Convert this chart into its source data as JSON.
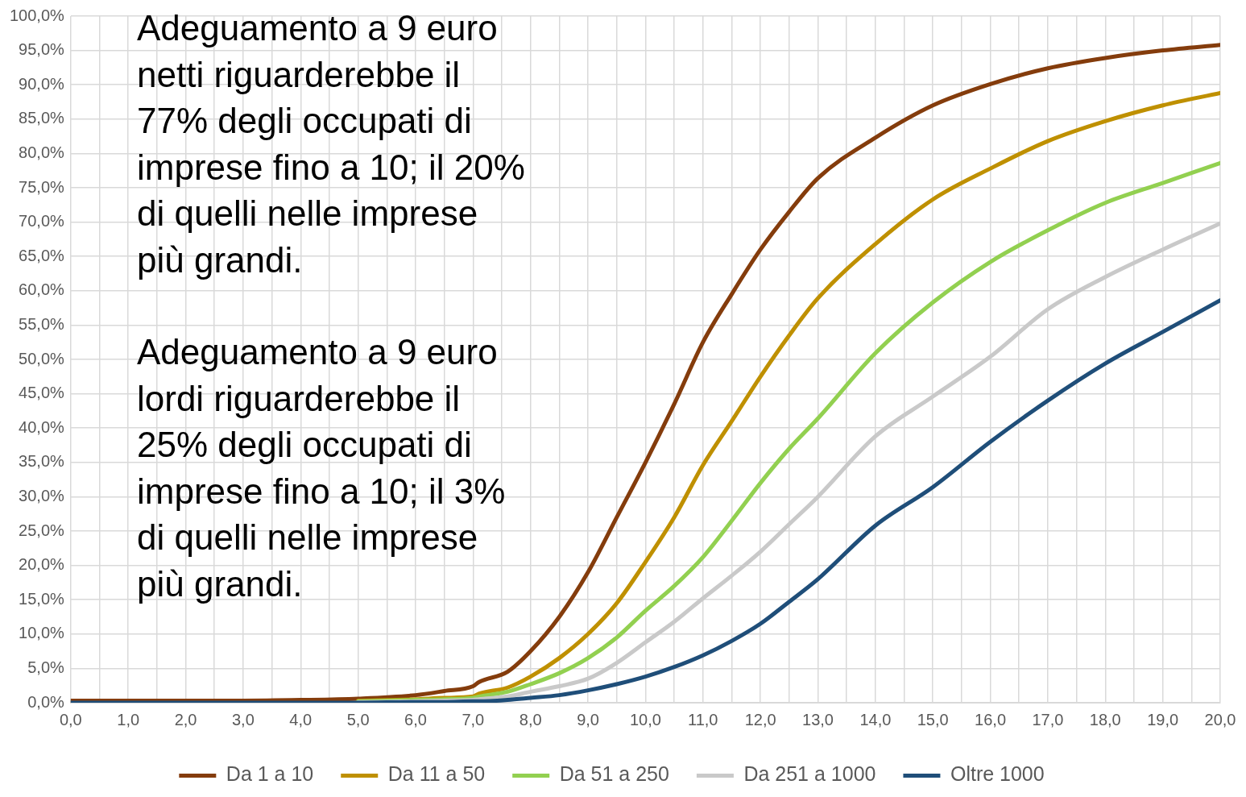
{
  "chart_data": {
    "type": "line",
    "x": [
      0,
      1,
      2,
      3,
      4,
      5,
      6,
      6.5,
      7,
      7.1,
      7.6,
      8,
      8.5,
      9,
      9.5,
      10,
      10.5,
      11,
      11.5,
      12,
      12.5,
      13,
      14,
      15,
      16,
      17,
      18,
      19,
      20
    ],
    "series": [
      {
        "name": "Da 1 a 10",
        "color": "#843c0c",
        "values": [
          0.3,
          0.3,
          0.3,
          0.3,
          0.4,
          0.6,
          1.1,
          1.7,
          2.4,
          3.0,
          4.5,
          7.5,
          12.5,
          19,
          27,
          35,
          43.5,
          52.5,
          59.5,
          66,
          71.5,
          76.4,
          82.3,
          87,
          90.1,
          92.4,
          93.9,
          95,
          95.8
        ]
      },
      {
        "name": "Da 11 a 50",
        "color": "#bf9000",
        "values": [
          null,
          null,
          null,
          null,
          null,
          0.3,
          0.5,
          0.7,
          0.9,
          1.3,
          2.2,
          3.8,
          6.5,
          10,
          14.5,
          20.5,
          27,
          34.6,
          41,
          47.5,
          53.5,
          58.9,
          66.8,
          73.3,
          77.8,
          81.8,
          84.7,
          87,
          88.8
        ]
      },
      {
        "name": "Da 51 a 250",
        "color": "#92d050",
        "values": [
          null,
          null,
          null,
          null,
          null,
          0.2,
          0.4,
          0.5,
          0.7,
          0.9,
          1.6,
          2.7,
          4.3,
          6.5,
          9.5,
          13.4,
          17,
          21.2,
          26.5,
          32,
          37,
          41.4,
          50.9,
          58.3,
          64.2,
          68.8,
          72.8,
          75.7,
          78.6
        ]
      },
      {
        "name": "Da 251 a 1000",
        "color": "#c9c9c9",
        "values": [
          null,
          null,
          null,
          null,
          null,
          0.1,
          0.2,
          0.3,
          0.4,
          0.5,
          0.9,
          1.6,
          2.4,
          3.5,
          5.8,
          8.8,
          11.8,
          15.2,
          18.5,
          22,
          26,
          30,
          38.8,
          44.6,
          50.4,
          57.3,
          62,
          66,
          69.8
        ]
      },
      {
        "name": "Oltre 1000",
        "color": "#1f4e79",
        "values": [
          0,
          0,
          0,
          0,
          0,
          0,
          0.1,
          0.1,
          0.2,
          0.2,
          0.4,
          0.7,
          1.1,
          1.8,
          2.7,
          3.8,
          5.2,
          6.9,
          9,
          11.5,
          14.7,
          18,
          25.8,
          31.4,
          38,
          44,
          49.4,
          54,
          58.6
        ]
      }
    ],
    "xlim": [
      0,
      20
    ],
    "xticks": [
      {
        "value": 0,
        "label": "0,0"
      },
      {
        "value": 0.5,
        "label": null
      },
      {
        "value": 1,
        "label": "1,0"
      },
      {
        "value": 1.5,
        "label": null
      },
      {
        "value": 2,
        "label": "2,0"
      },
      {
        "value": 2.5,
        "label": null
      },
      {
        "value": 3,
        "label": "3,0"
      },
      {
        "value": 3.5,
        "label": null
      },
      {
        "value": 4,
        "label": "4,0"
      },
      {
        "value": 4.5,
        "label": null
      },
      {
        "value": 5,
        "label": "5,0"
      },
      {
        "value": 5.5,
        "label": null
      },
      {
        "value": 6,
        "label": "6,0"
      },
      {
        "value": 6.5,
        "label": null
      },
      {
        "value": 7,
        "label": "7,0"
      },
      {
        "value": 7.5,
        "label": null
      },
      {
        "value": 8,
        "label": "8,0"
      },
      {
        "value": 8.5,
        "label": null
      },
      {
        "value": 9,
        "label": "9,0"
      },
      {
        "value": 9.5,
        "label": null
      },
      {
        "value": 10,
        "label": "10,0"
      },
      {
        "value": 10.5,
        "label": null
      },
      {
        "value": 11,
        "label": "11,0"
      },
      {
        "value": 11.5,
        "label": null
      },
      {
        "value": 12,
        "label": "12,0"
      },
      {
        "value": 12.5,
        "label": null
      },
      {
        "value": 13,
        "label": "13,0"
      },
      {
        "value": 13.5,
        "label": null
      },
      {
        "value": 14,
        "label": "14,0"
      },
      {
        "value": 14.5,
        "label": null
      },
      {
        "value": 15,
        "label": "15,0"
      },
      {
        "value": 15.5,
        "label": null
      },
      {
        "value": 16,
        "label": "16,0"
      },
      {
        "value": 16.5,
        "label": null
      },
      {
        "value": 17,
        "label": "17,0"
      },
      {
        "value": 17.5,
        "label": null
      },
      {
        "value": 18,
        "label": "18,0"
      },
      {
        "value": 18.5,
        "label": null
      },
      {
        "value": 19,
        "label": "19,0"
      },
      {
        "value": 19.5,
        "label": null
      },
      {
        "value": 20,
        "label": "20,0"
      }
    ],
    "ylim": [
      0,
      100
    ],
    "yticks": [
      {
        "value": 0,
        "label": "0,0%"
      },
      {
        "value": 5,
        "label": "5,0%"
      },
      {
        "value": 10,
        "label": "10,0%"
      },
      {
        "value": 15,
        "label": "15,0%"
      },
      {
        "value": 20,
        "label": "20,0%"
      },
      {
        "value": 25,
        "label": "25,0%"
      },
      {
        "value": 30,
        "label": "30,0%"
      },
      {
        "value": 35,
        "label": "35,0%"
      },
      {
        "value": 40,
        "label": "40,0%"
      },
      {
        "value": 45,
        "label": "45,0%"
      },
      {
        "value": 50,
        "label": "50,0%"
      },
      {
        "value": 55,
        "label": "55,0%"
      },
      {
        "value": 60,
        "label": "60,0%"
      },
      {
        "value": 65,
        "label": "65,0%"
      },
      {
        "value": 70,
        "label": "70,0%"
      },
      {
        "value": 75,
        "label": "75,0%"
      },
      {
        "value": 80,
        "label": "80,0%"
      },
      {
        "value": 85,
        "label": "85,0%"
      },
      {
        "value": 90,
        "label": "90,0%"
      },
      {
        "value": 95,
        "label": "95,0%"
      },
      {
        "value": 100,
        "label": "100,0%"
      }
    ],
    "grid": true,
    "legend": "bottom",
    "marker": "none",
    "line_style": "solid",
    "annotations": [
      "Adeguamento a 9 euro netti riguarderebbe il 77% degli occupati di imprese fino a 10; il 20% di quelli nelle imprese più grandi.",
      "Adeguamento a 9 euro lordi riguarderebbe il 25% degli occupati di imprese fino a 10; il 3% di quelli nelle imprese più grandi."
    ]
  }
}
